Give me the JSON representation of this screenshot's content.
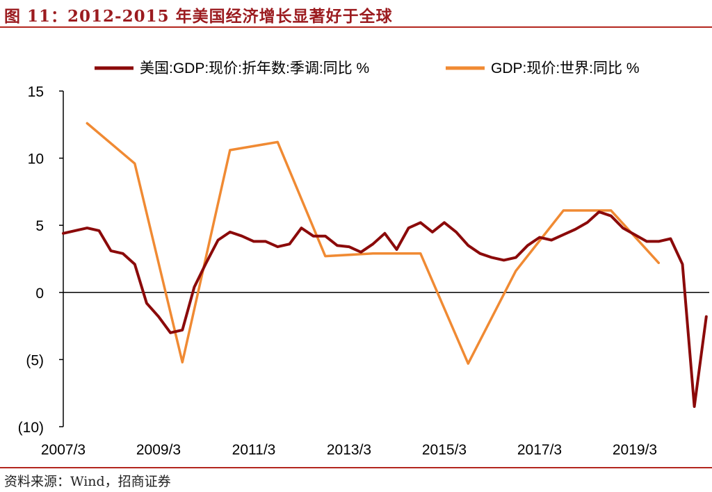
{
  "header": {
    "title": "图 11：2012-2015 年美国经济增长显著好于全球"
  },
  "footer": {
    "source": "资料来源：Wind，招商证券"
  },
  "colors": {
    "us_series": "#8b0a0a",
    "world_series": "#f08a33",
    "negative_tick": "#c00000",
    "rule": "#b3261e"
  },
  "chart_data": {
    "type": "line",
    "title": "",
    "xlabel": "",
    "ylabel": "",
    "ylim": [
      -10,
      15
    ],
    "y_ticks": [
      {
        "value": 15,
        "label": "15"
      },
      {
        "value": 10,
        "label": "10"
      },
      {
        "value": 5,
        "label": "5"
      },
      {
        "value": 0,
        "label": "0"
      },
      {
        "value": -5,
        "label": "(5)"
      },
      {
        "value": -10,
        "label": "(10)"
      }
    ],
    "x_ticks": [
      "2007/3",
      "2009/3",
      "2011/3",
      "2013/3",
      "2015/3",
      "2017/3",
      "2019/3"
    ],
    "legend": "top",
    "series": [
      {
        "name": "美国:GDP:现价:折年数:季调:同比 %",
        "color": "#8b0a0a",
        "points": [
          [
            "2007/3",
            4.4
          ],
          [
            "2007/6",
            4.6
          ],
          [
            "2007/9",
            4.8
          ],
          [
            "2007/12",
            4.6
          ],
          [
            "2008/3",
            3.1
          ],
          [
            "2008/6",
            2.9
          ],
          [
            "2008/9",
            2.1
          ],
          [
            "2008/12",
            -0.8
          ],
          [
            "2009/3",
            -1.8
          ],
          [
            "2009/6",
            -3.0
          ],
          [
            "2009/9",
            -2.8
          ],
          [
            "2009/12",
            0.4
          ],
          [
            "2010/3",
            2.2
          ],
          [
            "2010/6",
            3.9
          ],
          [
            "2010/9",
            4.5
          ],
          [
            "2010/12",
            4.2
          ],
          [
            "2011/3",
            3.8
          ],
          [
            "2011/6",
            3.8
          ],
          [
            "2011/9",
            3.4
          ],
          [
            "2011/12",
            3.6
          ],
          [
            "2012/3",
            4.8
          ],
          [
            "2012/6",
            4.2
          ],
          [
            "2012/9",
            4.2
          ],
          [
            "2012/12",
            3.5
          ],
          [
            "2013/3",
            3.4
          ],
          [
            "2013/6",
            3.0
          ],
          [
            "2013/9",
            3.6
          ],
          [
            "2013/12",
            4.4
          ],
          [
            "2014/3",
            3.2
          ],
          [
            "2014/6",
            4.8
          ],
          [
            "2014/9",
            5.2
          ],
          [
            "2014/12",
            4.5
          ],
          [
            "2015/3",
            5.2
          ],
          [
            "2015/6",
            4.5
          ],
          [
            "2015/9",
            3.5
          ],
          [
            "2015/12",
            2.9
          ],
          [
            "2016/3",
            2.6
          ],
          [
            "2016/6",
            2.4
          ],
          [
            "2016/9",
            2.6
          ],
          [
            "2016/12",
            3.5
          ],
          [
            "2017/3",
            4.1
          ],
          [
            "2017/6",
            3.9
          ],
          [
            "2017/9",
            4.3
          ],
          [
            "2017/12",
            4.7
          ],
          [
            "2018/3",
            5.2
          ],
          [
            "2018/6",
            6.0
          ],
          [
            "2018/9",
            5.7
          ],
          [
            "2018/12",
            4.8
          ],
          [
            "2019/3",
            4.3
          ],
          [
            "2019/6",
            3.8
          ],
          [
            "2019/9",
            3.8
          ],
          [
            "2019/12",
            4.0
          ],
          [
            "2020/3",
            2.1
          ],
          [
            "2020/6",
            -8.5
          ],
          [
            "2020/9",
            -1.8
          ]
        ]
      },
      {
        "name": "GDP:现价:世界:同比 %",
        "color": "#f08a33",
        "points": [
          [
            "2007",
            12.6
          ],
          [
            "2008",
            9.6
          ],
          [
            "2009",
            -5.2
          ],
          [
            "2010",
            10.6
          ],
          [
            "2011",
            11.2
          ],
          [
            "2012",
            2.7
          ],
          [
            "2013",
            2.9
          ],
          [
            "2014",
            2.9
          ],
          [
            "2015",
            -5.3
          ],
          [
            "2016",
            1.6
          ],
          [
            "2017",
            6.1
          ],
          [
            "2018",
            6.1
          ],
          [
            "2019",
            2.2
          ]
        ]
      }
    ]
  }
}
